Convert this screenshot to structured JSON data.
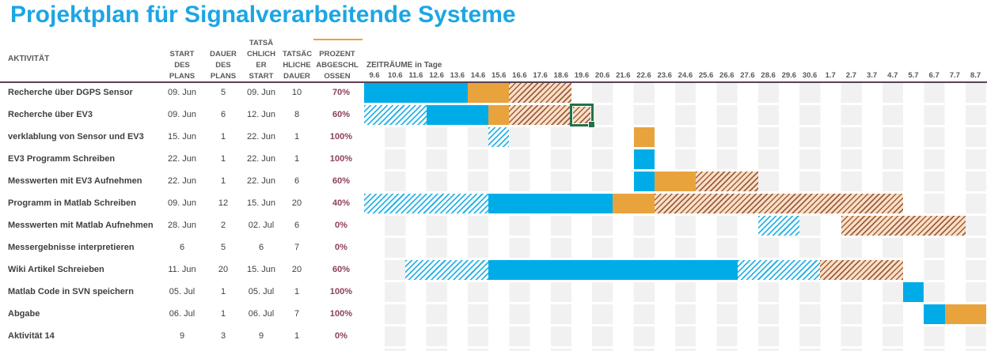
{
  "title": "Projektplan für Signalverarbeitende Systeme",
  "columns": {
    "aktivitaet": "AKTIVITÄT",
    "start_plan": "START\nDES\nPLANS",
    "dauer_plan": "DAUER\nDES\nPLANS",
    "start_actual": "TATSÄ\nCHLICH\nER\nSTART",
    "dauer_actual": "TATSÄC\nHLICHE\nDAUER",
    "prozent": "PROZENT\nABGESCHL\nOSSEN"
  },
  "timeline": {
    "label": "ZEITRÄUME in Tage",
    "ticks": [
      "9.6",
      "10.6",
      "11.6",
      "12.6",
      "13.6",
      "14.6",
      "15.6",
      "16.6",
      "17.6",
      "18.6",
      "19.6",
      "20.6",
      "21.6",
      "22.6",
      "23.6",
      "24.6",
      "25.6",
      "26.6",
      "27.6",
      "28.6",
      "29.6",
      "30.6",
      "1.7",
      "2.7",
      "3.7",
      "4.7",
      "5.7",
      "6.7",
      "7.7",
      "8.7"
    ]
  },
  "selection": {
    "row_index": 1,
    "col_index": 10
  },
  "rows": [
    {
      "aktivitaet": "Recherche über DGPS Sensor",
      "start_plan": "09. Jun",
      "dauer_plan": "5",
      "start_actual": "09. Jun",
      "dauer_actual": "10",
      "prozent": "70%",
      "segments": [
        {
          "start": 0,
          "span": 5,
          "type": "solid-blue"
        },
        {
          "start": 5,
          "span": 2,
          "type": "solid-orange"
        },
        {
          "start": 7,
          "span": 3,
          "type": "hatch-orange"
        }
      ]
    },
    {
      "aktivitaet": "Recherche über EV3",
      "start_plan": "09. Jun",
      "dauer_plan": "6",
      "start_actual": "12. Jun",
      "dauer_actual": "8",
      "prozent": "60%",
      "segments": [
        {
          "start": 0,
          "span": 3,
          "type": "hatch-blue"
        },
        {
          "start": 3,
          "span": 3,
          "type": "solid-blue"
        },
        {
          "start": 6,
          "span": 1,
          "type": "solid-orange"
        },
        {
          "start": 7,
          "span": 3,
          "type": "hatch-orange"
        },
        {
          "start": 10,
          "span": 1,
          "type": "hatch-orange",
          "selected": true
        }
      ]
    },
    {
      "aktivitaet": "verklablung von Sensor und EV3",
      "start_plan": "15. Jun",
      "dauer_plan": "1",
      "start_actual": "22. Jun",
      "dauer_actual": "1",
      "prozent": "100%",
      "segments": [
        {
          "start": 6,
          "span": 1,
          "type": "hatch-blue"
        },
        {
          "start": 13,
          "span": 1,
          "type": "solid-orange"
        }
      ]
    },
    {
      "aktivitaet": "EV3 Programm Schreiben",
      "start_plan": "22. Jun",
      "dauer_plan": "1",
      "start_actual": "22. Jun",
      "dauer_actual": "1",
      "prozent": "100%",
      "segments": [
        {
          "start": 13,
          "span": 1,
          "type": "solid-blue"
        }
      ]
    },
    {
      "aktivitaet": "Messwerten mit EV3 Aufnehmen",
      "start_plan": "22. Jun",
      "dauer_plan": "1",
      "start_actual": "22. Jun",
      "dauer_actual": "6",
      "prozent": "60%",
      "segments": [
        {
          "start": 13,
          "span": 1,
          "type": "solid-blue"
        },
        {
          "start": 14,
          "span": 2,
          "type": "solid-orange"
        },
        {
          "start": 16,
          "span": 3,
          "type": "hatch-orange"
        }
      ]
    },
    {
      "aktivitaet": "Programm in Matlab Schreiben",
      "start_plan": "09. Jun",
      "dauer_plan": "12",
      "start_actual": "15. Jun",
      "dauer_actual": "20",
      "prozent": "40%",
      "segments": [
        {
          "start": 0,
          "span": 6,
          "type": "hatch-blue"
        },
        {
          "start": 6,
          "span": 6,
          "type": "solid-blue"
        },
        {
          "start": 12,
          "span": 2,
          "type": "solid-orange"
        },
        {
          "start": 14,
          "span": 12,
          "type": "hatch-orange"
        }
      ]
    },
    {
      "aktivitaet": "Messwerten mit Matlab Aufnehmen",
      "start_plan": "28. Jun",
      "dauer_plan": "2",
      "start_actual": "02. Jul",
      "dauer_actual": "6",
      "prozent": "0%",
      "segments": [
        {
          "start": 19,
          "span": 2,
          "type": "hatch-blue"
        },
        {
          "start": 23,
          "span": 6,
          "type": "hatch-orange"
        }
      ]
    },
    {
      "aktivitaet": "Messergebnisse interpretieren",
      "start_plan": "6",
      "dauer_plan": "5",
      "start_actual": "6",
      "dauer_actual": "7",
      "prozent": "0%",
      "segments": []
    },
    {
      "aktivitaet": "Wiki Artikel Schreieben",
      "start_plan": "11. Jun",
      "dauer_plan": "20",
      "start_actual": "15. Jun",
      "dauer_actual": "20",
      "prozent": "60%",
      "segments": [
        {
          "start": 2,
          "span": 4,
          "type": "hatch-blue"
        },
        {
          "start": 6,
          "span": 12,
          "type": "solid-blue"
        },
        {
          "start": 18,
          "span": 4,
          "type": "hatch-blue"
        },
        {
          "start": 22,
          "span": 4,
          "type": "hatch-orange"
        }
      ]
    },
    {
      "aktivitaet": "Matlab Code in SVN speichern",
      "start_plan": "05. Jul",
      "dauer_plan": "1",
      "start_actual": "05. Jul",
      "dauer_actual": "1",
      "prozent": "100%",
      "segments": [
        {
          "start": 26,
          "span": 1,
          "type": "solid-blue"
        }
      ]
    },
    {
      "aktivitaet": "Abgabe",
      "start_plan": "06. Jul",
      "dauer_plan": "1",
      "start_actual": "06. Jul",
      "dauer_actual": "7",
      "prozent": "100%",
      "segments": [
        {
          "start": 27,
          "span": 1,
          "type": "solid-blue"
        },
        {
          "start": 28,
          "span": 2,
          "type": "solid-orange"
        }
      ]
    },
    {
      "aktivitaet": "Aktivität 14",
      "start_plan": "9",
      "dauer_plan": "3",
      "start_actual": "9",
      "dauer_actual": "1",
      "prozent": "0%",
      "segments": []
    }
  ],
  "colors": {
    "accent_blue": "#1BA6E4",
    "bar_blue": "#00ACE8",
    "bar_orange": "#E8A33D",
    "hatch_blue_line": "#2BB3E8",
    "hatch_orange_line": "#9A5B54",
    "hatch_orange_bg": "#FBE0BC",
    "stripe_gray": "#F1F1F1",
    "percent_text": "#8C3F5D",
    "selection_green": "#217346",
    "header_line": "#5A4055"
  }
}
